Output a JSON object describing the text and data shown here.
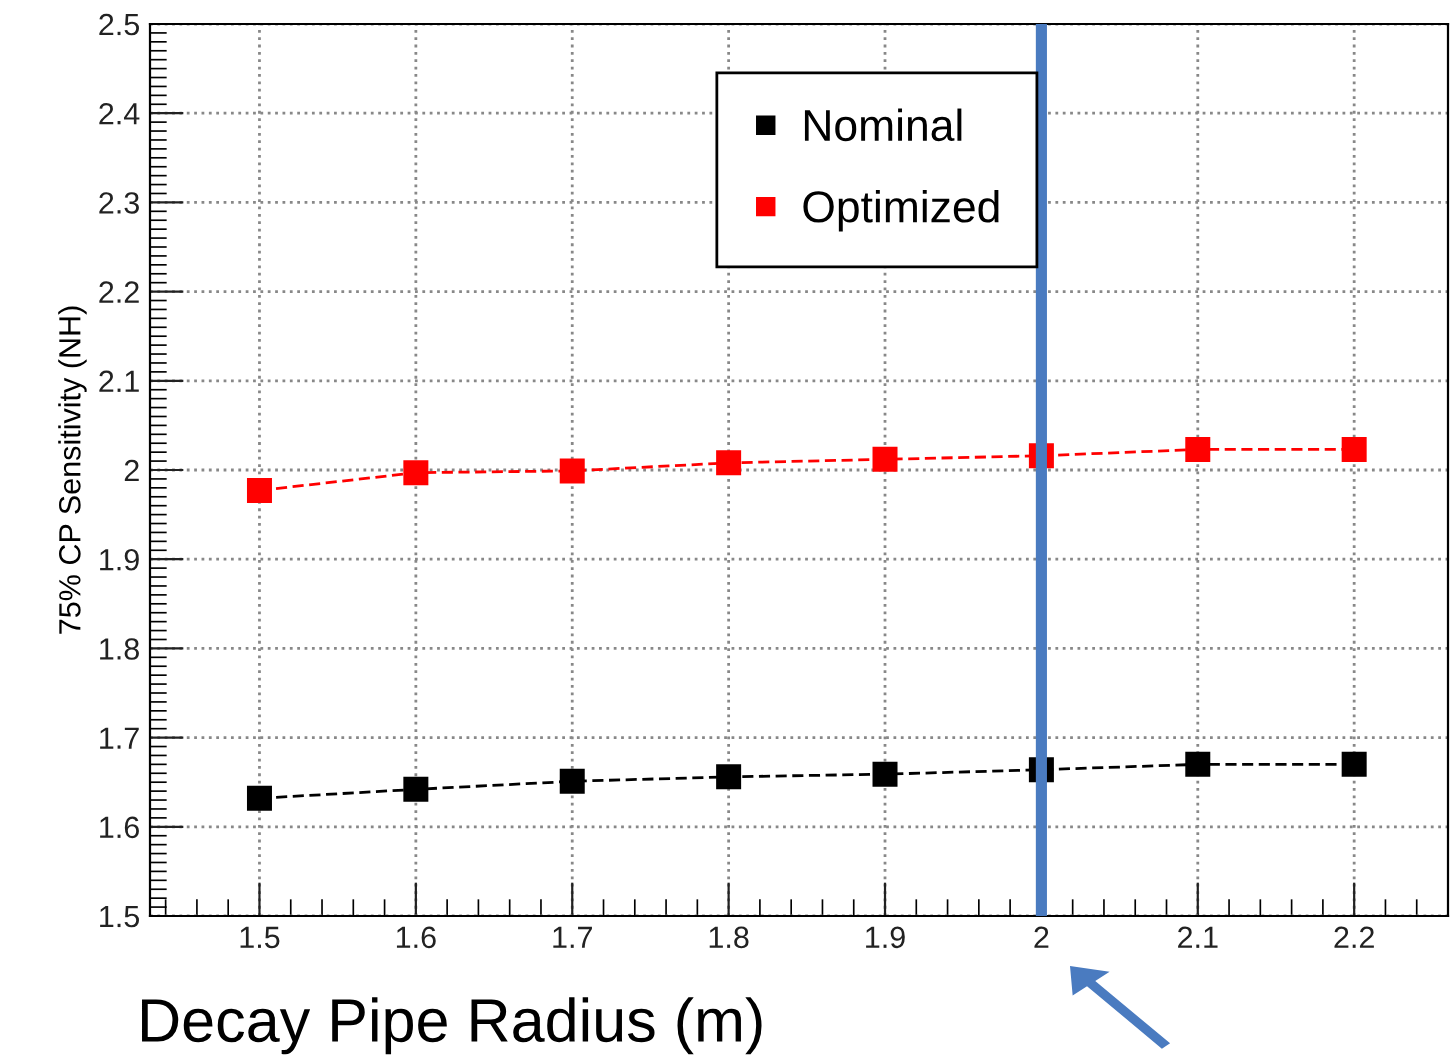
{
  "chart_data": {
    "type": "line",
    "xlabel": "Decay Pipe Radius (m)",
    "ylabel": "75% CP Sensitivity (NH)",
    "x": [
      1.5,
      1.6,
      1.7,
      1.8,
      1.9,
      2.0,
      2.1,
      2.2
    ],
    "series": [
      {
        "name": "Nominal",
        "color": "#000000",
        "values": [
          1.632,
          1.642,
          1.651,
          1.656,
          1.659,
          1.664,
          1.67,
          1.67
        ]
      },
      {
        "name": "Optimized",
        "color": "#ff0000",
        "values": [
          1.977,
          1.997,
          1.999,
          2.008,
          2.012,
          2.016,
          2.023,
          2.023
        ]
      }
    ],
    "xlim": [
      1.43,
      2.26
    ],
    "xticks": [
      {
        "value": 1.5,
        "label": "1.5"
      },
      {
        "value": 1.6,
        "label": "1.6"
      },
      {
        "value": 1.7,
        "label": "1.7"
      },
      {
        "value": 1.8,
        "label": "1.8"
      },
      {
        "value": 1.9,
        "label": "1.9"
      },
      {
        "value": 2,
        "label": "2"
      },
      {
        "value": 2.1,
        "label": "2.1"
      },
      {
        "value": 2.2,
        "label": "2.2"
      }
    ],
    "ylim": [
      1.5,
      2.5
    ],
    "yticks": [
      1.5,
      1.6,
      1.7,
      1.8,
      1.9,
      2,
      2.1,
      2.2,
      2.3,
      2.4,
      2.5
    ],
    "ref_lines": [
      {
        "axis": "x",
        "value": 2,
        "color": "#4a7bc0"
      }
    ],
    "grid": true,
    "legend": "top",
    "marker": "square",
    "line_style": "dashed"
  }
}
